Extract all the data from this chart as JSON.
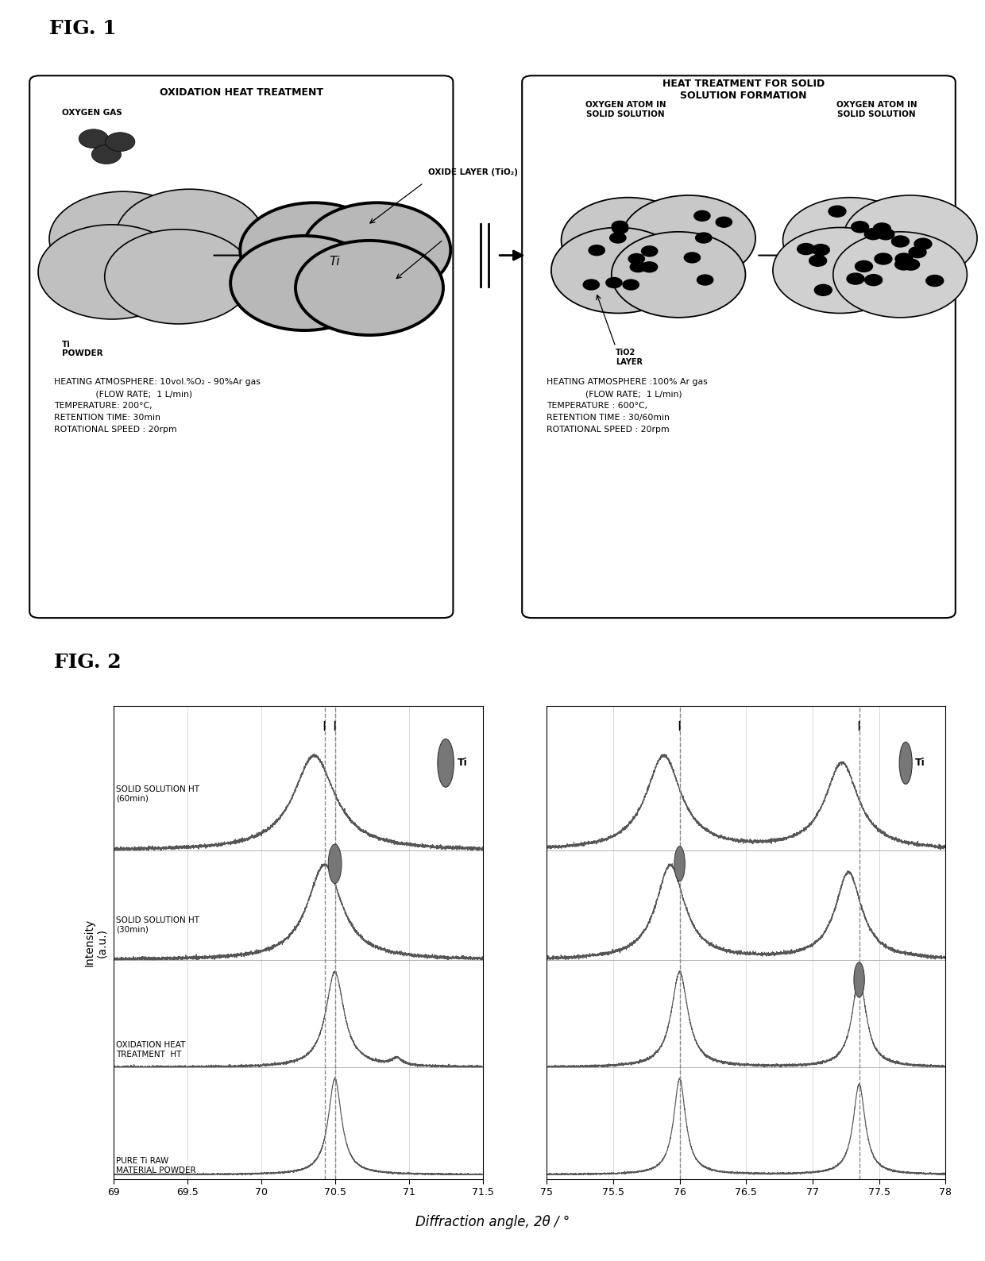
{
  "fig_width": 12.4,
  "fig_height": 15.88,
  "bg_color": "#ffffff",
  "fig1_label": "FIG. 1",
  "fig2_label": "FIG. 2",
  "left_box_title": "OXIDATION HEAT TREATMENT",
  "right_box_title": "HEAT TREATMENT FOR SOLID\nSOLUTION FORMATION",
  "left_params": "HEATING ATMOSPHERE: 10vol.%O₂ - 90%Ar gas\n               (FLOW RATE;  1 L/min)\nTEMPERATURE: 200°C,\nRETENTION TIME: 30min\nROTATIONAL SPEED : 20rpm",
  "right_params": "HEATING ATMOSPHERE :100% Ar gas\n              (FLOW RATE;  1 L/min)\nTEMPERATURE : 600°C,\nRETENTION TIME : 30/60min\nROTATIONAL SPEED : 20rpm",
  "plot1_xlim": [
    69.0,
    71.5
  ],
  "plot1_xticks": [
    69.0,
    69.5,
    70.0,
    70.5,
    71.0,
    71.5
  ],
  "plot2_xlim": [
    75.0,
    78.0
  ],
  "plot2_xticks": [
    75.0,
    75.5,
    76.0,
    76.5,
    77.0,
    77.5,
    78.0
  ],
  "xlabel": "Diffraction angle, 2θ / °",
  "ylabel": "Intensity\n(a.u.)",
  "series_labels": [
    "SOLID SOLUTION HT\n(60min)",
    "SOLID SOLUTION HT\n(30min)",
    "OXIDATION HEAT\nTREATMENT  HT",
    "PURE Ti RAW\nMATERIAL POWDER"
  ],
  "legend_label": "Ti",
  "curve_color": "#555555",
  "grid_color": "#cccccc",
  "dashed_color": "#888888"
}
